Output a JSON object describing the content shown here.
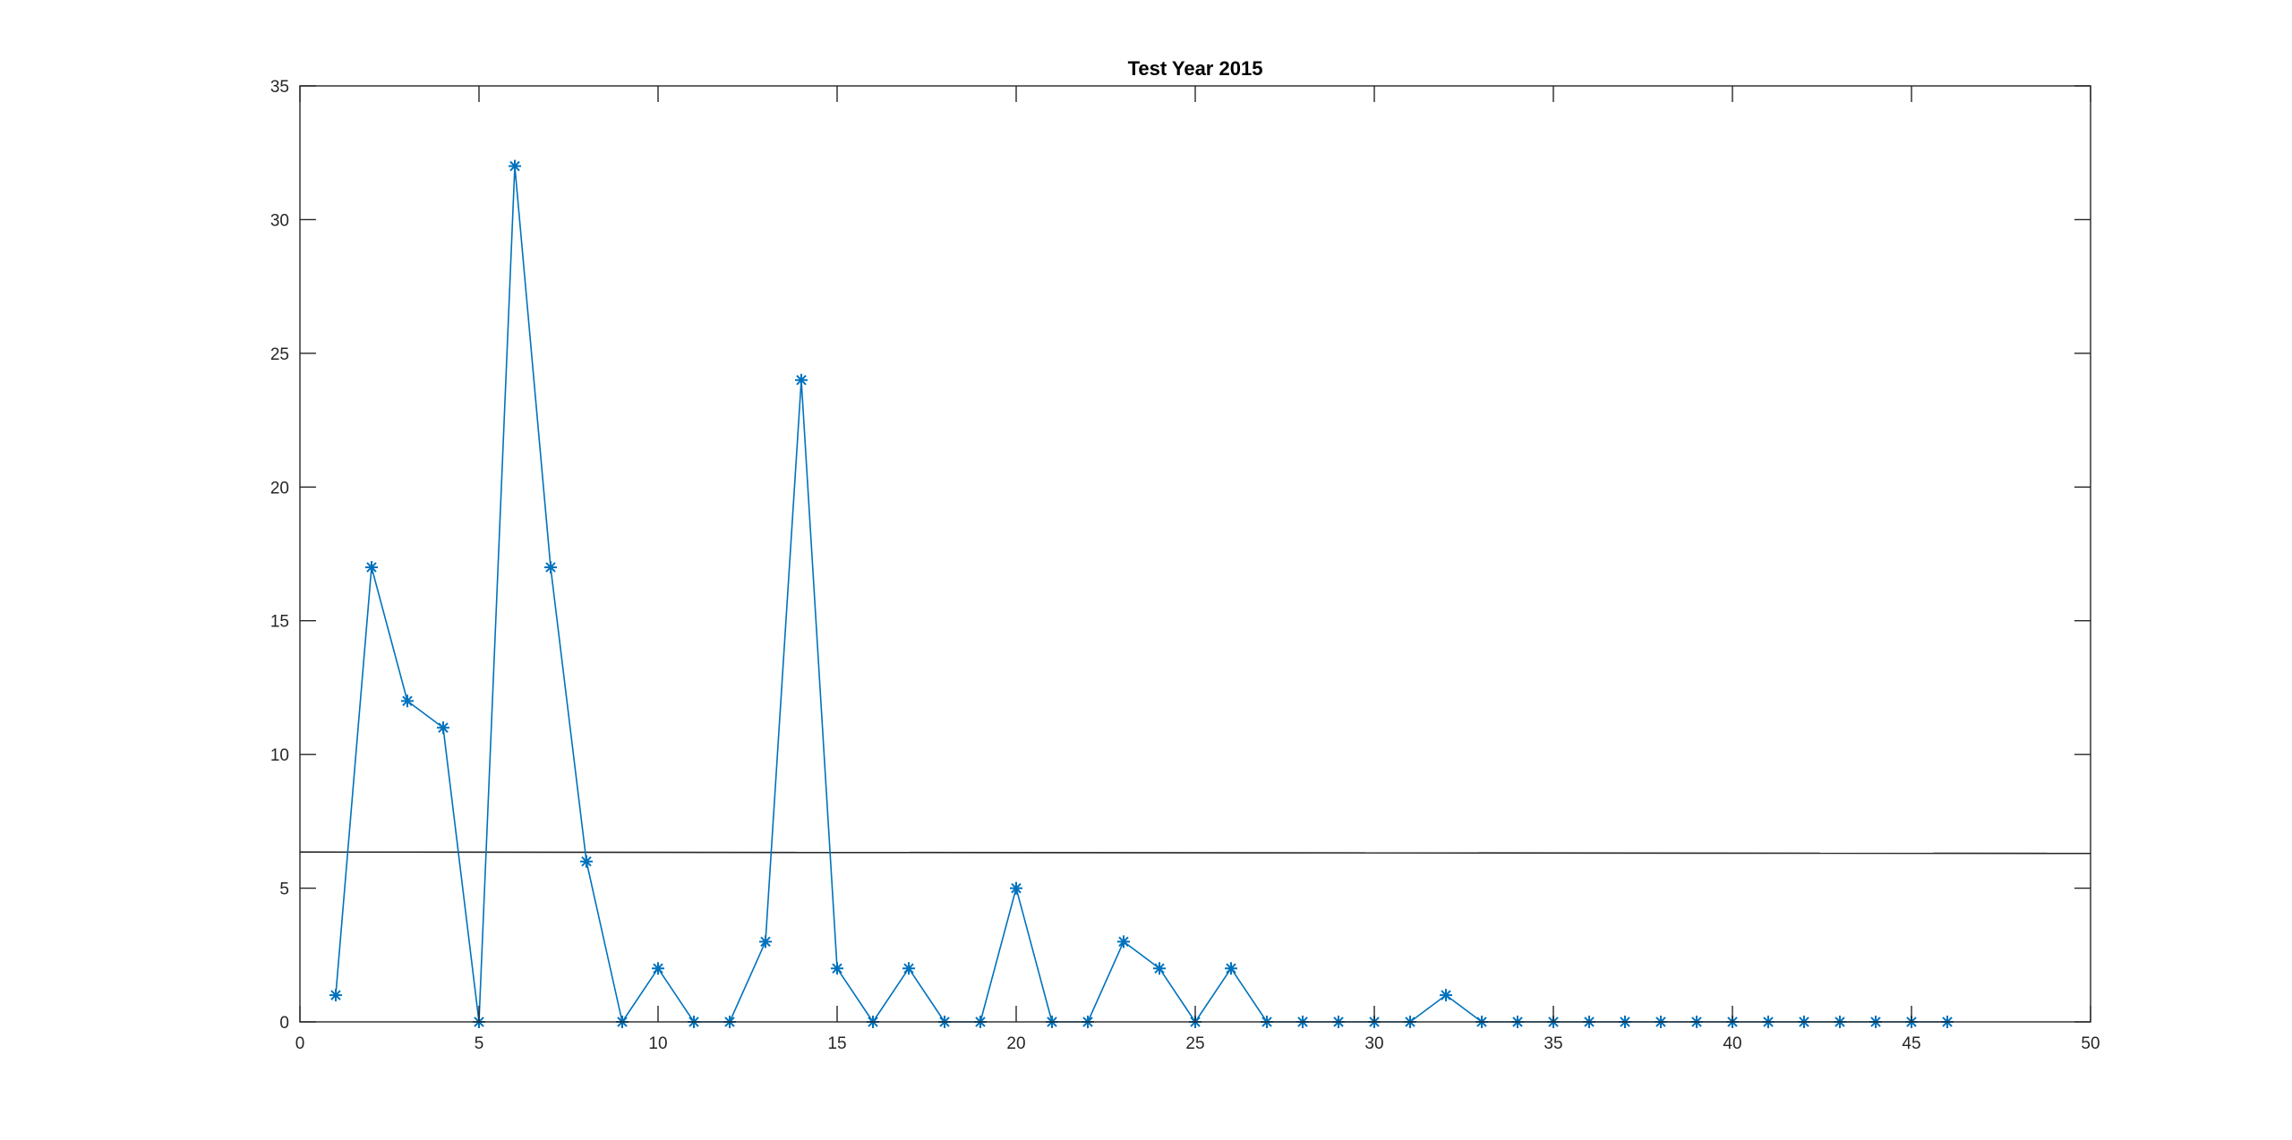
{
  "chart_data": {
    "type": "line",
    "title": "Test Year 2015",
    "xlabel": "",
    "ylabel": "",
    "xlim": [
      0,
      50
    ],
    "ylim": [
      0,
      35
    ],
    "xticks": [
      0,
      5,
      10,
      15,
      20,
      25,
      30,
      35,
      40,
      45,
      50
    ],
    "yticks": [
      0,
      5,
      10,
      15,
      20,
      25,
      30,
      35
    ],
    "grid": false,
    "legend": "none",
    "marker": "asterisk",
    "series": [
      {
        "color": "#0072BD",
        "x": [
          1,
          2,
          3,
          4,
          5,
          6,
          7,
          8,
          9,
          10,
          11,
          12,
          13,
          14,
          15,
          16,
          17,
          18,
          19,
          20,
          21,
          22,
          23,
          24,
          25,
          26,
          27,
          28,
          29,
          30,
          31,
          32,
          33,
          34,
          35,
          36,
          37,
          38,
          39,
          40,
          41,
          42,
          43,
          44,
          45,
          46
        ],
        "y": [
          1,
          17,
          12,
          11,
          0,
          32,
          17,
          6,
          0,
          2,
          0,
          0,
          3,
          24,
          2,
          0,
          2,
          0,
          0,
          5,
          0,
          0,
          3,
          2,
          0,
          2,
          0,
          0,
          0,
          0,
          0,
          1,
          0,
          0,
          0,
          0,
          0,
          0,
          0,
          0,
          0,
          0,
          0,
          0,
          0,
          0
        ]
      }
    ],
    "reference_line": {
      "color": "#262626",
      "x": [
        0,
        50
      ],
      "y": [
        6.35,
        6.3
      ]
    }
  }
}
